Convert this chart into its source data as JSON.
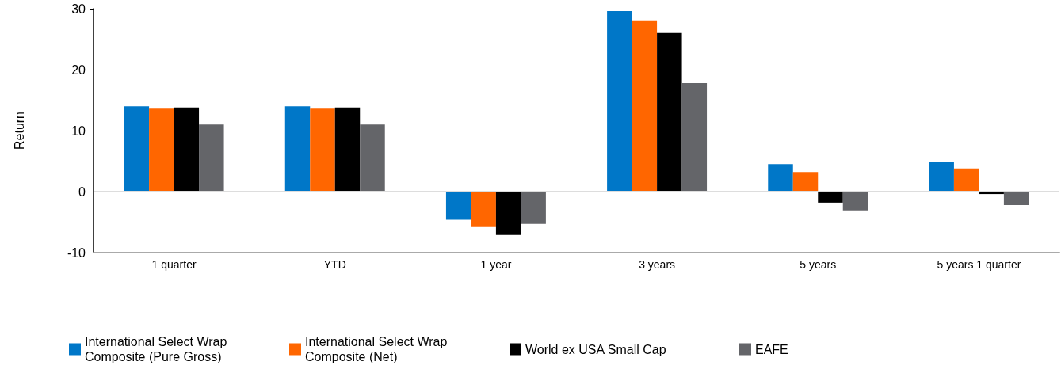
{
  "chart_data": {
    "type": "bar",
    "ylabel": "Return",
    "categories": [
      "1 quarter",
      "YTD",
      "1 year",
      "3 years",
      "5 years",
      "5 years 1 quarter"
    ],
    "series": [
      {
        "name": "International Select Wrap Composite (Pure Gross)",
        "color": "#0077c8",
        "values": [
          14.0,
          14.0,
          -4.6,
          29.6,
          4.5,
          4.9
        ]
      },
      {
        "name": "International Select Wrap Composite (Net)",
        "color": "#ff6600",
        "values": [
          13.6,
          13.6,
          -5.8,
          28.1,
          3.2,
          3.8
        ]
      },
      {
        "name": "World ex USA Small Cap",
        "color": "#000000",
        "values": [
          13.8,
          13.8,
          -7.1,
          26.0,
          -1.8,
          -0.4
        ]
      },
      {
        "name": "EAFE",
        "color": "#646569",
        "values": [
          11.0,
          11.0,
          -5.3,
          17.8,
          -3.1,
          -2.2
        ]
      }
    ],
    "ylim": [
      -10,
      30
    ],
    "yticks": [
      -10,
      0,
      10,
      20,
      30
    ],
    "grid": false,
    "legend": "bottom left",
    "ref_lines": [
      {
        "axis": "y",
        "value": 0,
        "color": "#dddddd",
        "line_style": "solid"
      }
    ]
  }
}
